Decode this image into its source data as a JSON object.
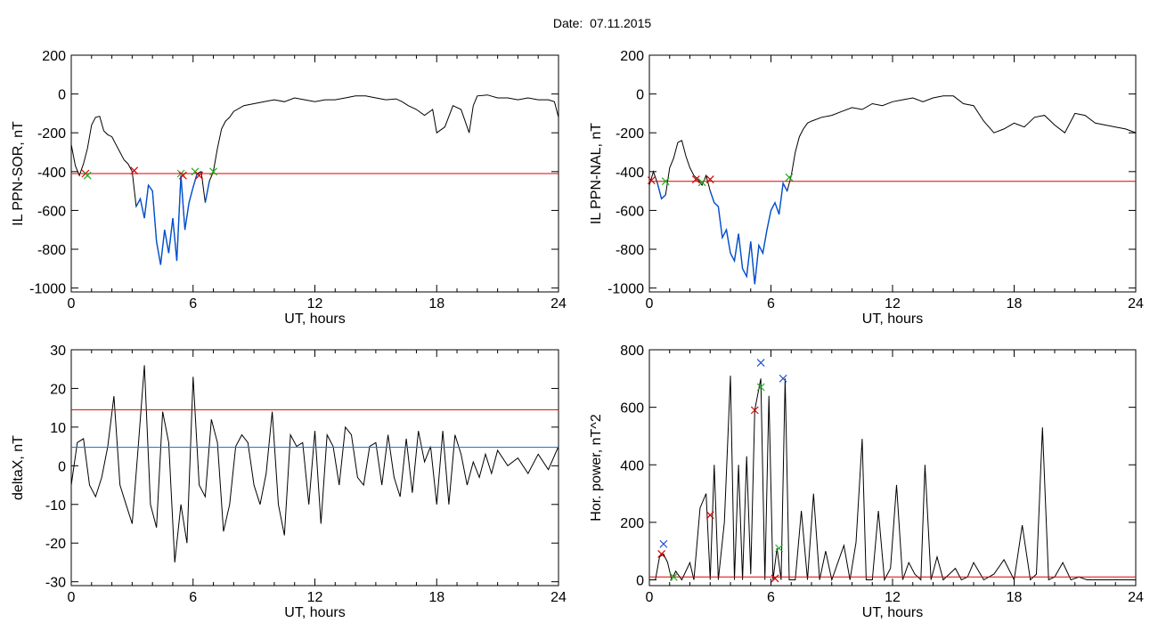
{
  "page": {
    "date_label": "Date:",
    "date_value": "07.11.2015"
  },
  "colors": {
    "axes": "#000000",
    "data_line": "#000000",
    "threshold_line": "#dd0000",
    "highlight_line": "#0050d0",
    "mean_line": "#1f77d4",
    "marker_red": "#cc0000",
    "marker_green": "#22aa22",
    "marker_blue": "#2255cc"
  },
  "chart_data": [
    {
      "id": "panel-1",
      "type": "line",
      "xlabel": "UT, hours",
      "ylabel": "IL PPN-SOR, nT",
      "xlim": [
        0,
        24
      ],
      "ylim": [
        -1020,
        200
      ],
      "xticks": [
        0,
        6,
        12,
        18,
        24
      ],
      "yticks": [
        -1000,
        -800,
        -600,
        -400,
        -200,
        0,
        200
      ],
      "threshold": -410,
      "series": [
        {
          "x": [
            0,
            0.2,
            0.4,
            0.6,
            0.8,
            1.0,
            1.2,
            1.4,
            1.6,
            1.8,
            2.0,
            2.2,
            2.4,
            2.6,
            2.8,
            3.0,
            3.2,
            3.4,
            3.6,
            3.8,
            4.0,
            4.2,
            4.4,
            4.6,
            4.8,
            5.0,
            5.2,
            5.4,
            5.6,
            5.8,
            6.0,
            6.2,
            6.4,
            6.6,
            6.8,
            7.0,
            7.2,
            7.4,
            7.6,
            7.8,
            8.0,
            8.5,
            9.0,
            9.5,
            10.0,
            10.5,
            11.0,
            11.5,
            12.0,
            12.5,
            13.0,
            13.5,
            14.0,
            14.5,
            15.0,
            15.5,
            16.0,
            16.3,
            16.6,
            17.0,
            17.4,
            17.8,
            18.0,
            18.4,
            18.8,
            19.2,
            19.6,
            19.8,
            20.0,
            20.5,
            21.0,
            21.5,
            22.0,
            22.5,
            23.0,
            23.5,
            23.8,
            24.0
          ],
          "y": [
            -260,
            -370,
            -420,
            -360,
            -280,
            -160,
            -120,
            -115,
            -190,
            -210,
            -220,
            -260,
            -300,
            -340,
            -360,
            -400,
            -580,
            -540,
            -640,
            -470,
            -500,
            -760,
            -880,
            -700,
            -820,
            -640,
            -860,
            -420,
            -700,
            -560,
            -480,
            -410,
            -400,
            -560,
            -450,
            -400,
            -280,
            -180,
            -140,
            -120,
            -90,
            -60,
            -50,
            -40,
            -30,
            -40,
            -20,
            -30,
            -40,
            -30,
            -30,
            -20,
            -10,
            -10,
            -20,
            -30,
            -25,
            -40,
            -60,
            -80,
            -110,
            -80,
            -200,
            -170,
            -60,
            -80,
            -200,
            -60,
            -10,
            -5,
            -20,
            -20,
            -30,
            -20,
            -30,
            -30,
            -40,
            -120
          ]
        }
      ],
      "markers": [
        {
          "x": 0.7,
          "y": -410,
          "color": "red"
        },
        {
          "x": 0.8,
          "y": -420,
          "color": "green"
        },
        {
          "x": 3.1,
          "y": -395,
          "color": "red"
        },
        {
          "x": 5.4,
          "y": -410,
          "color": "green"
        },
        {
          "x": 5.5,
          "y": -420,
          "color": "red"
        },
        {
          "x": 6.1,
          "y": -400,
          "color": "green"
        },
        {
          "x": 6.3,
          "y": -420,
          "color": "red"
        },
        {
          "x": 7.0,
          "y": -400,
          "color": "green"
        }
      ]
    },
    {
      "id": "panel-2",
      "type": "line",
      "xlabel": "UT, hours",
      "ylabel": "IL PPN-NAL, nT",
      "xlim": [
        0,
        24
      ],
      "ylim": [
        -1020,
        200
      ],
      "xticks": [
        0,
        6,
        12,
        18,
        24
      ],
      "yticks": [
        -1000,
        -800,
        -600,
        -400,
        -200,
        0,
        200
      ],
      "threshold": -450,
      "series": [
        {
          "x": [
            0,
            0.2,
            0.4,
            0.6,
            0.8,
            1.0,
            1.2,
            1.4,
            1.6,
            1.8,
            2.0,
            2.2,
            2.4,
            2.6,
            2.8,
            3.0,
            3.2,
            3.4,
            3.6,
            3.8,
            4.0,
            4.2,
            4.4,
            4.6,
            4.8,
            5.0,
            5.2,
            5.4,
            5.6,
            5.8,
            6.0,
            6.2,
            6.4,
            6.6,
            6.8,
            7.0,
            7.2,
            7.4,
            7.6,
            7.8,
            8.0,
            8.5,
            9.0,
            9.5,
            10.0,
            10.5,
            11.0,
            11.5,
            12.0,
            12.5,
            13.0,
            13.5,
            14.0,
            14.5,
            15.0,
            15.5,
            16.0,
            16.5,
            17.0,
            17.5,
            18.0,
            18.5,
            19.0,
            19.5,
            20.0,
            20.5,
            21.0,
            21.5,
            22.0,
            22.5,
            23.0,
            23.5,
            24.0
          ],
          "y": [
            -470,
            -400,
            -460,
            -540,
            -520,
            -380,
            -330,
            -250,
            -240,
            -320,
            -380,
            -420,
            -440,
            -470,
            -420,
            -500,
            -560,
            -580,
            -740,
            -700,
            -820,
            -860,
            -720,
            -900,
            -940,
            -760,
            -980,
            -780,
            -820,
            -700,
            -600,
            -560,
            -620,
            -460,
            -500,
            -420,
            -300,
            -220,
            -180,
            -150,
            -140,
            -120,
            -110,
            -90,
            -70,
            -80,
            -50,
            -60,
            -40,
            -30,
            -20,
            -40,
            -20,
            -10,
            -10,
            -50,
            -60,
            -140,
            -200,
            -180,
            -150,
            -170,
            -120,
            -110,
            -160,
            -200,
            -100,
            -110,
            -150,
            -160,
            -170,
            -180,
            -200
          ]
        }
      ],
      "markers": [
        {
          "x": 0.1,
          "y": -445,
          "color": "red"
        },
        {
          "x": 0.8,
          "y": -450,
          "color": "green"
        },
        {
          "x": 2.3,
          "y": -440,
          "color": "red"
        },
        {
          "x": 2.6,
          "y": -455,
          "color": "green"
        },
        {
          "x": 3.0,
          "y": -440,
          "color": "red"
        },
        {
          "x": 6.9,
          "y": -430,
          "color": "green"
        }
      ]
    },
    {
      "id": "panel-3",
      "type": "line",
      "xlabel": "UT, hours",
      "ylabel": "deltaX, nT",
      "xlim": [
        0,
        24
      ],
      "ylim": [
        -31,
        30
      ],
      "xticks": [
        0,
        6,
        12,
        18,
        24
      ],
      "yticks": [
        -30,
        -20,
        -10,
        0,
        10,
        20,
        30
      ],
      "threshold": 14.5,
      "mean_line": 4.8,
      "series": [
        {
          "x": [
            0,
            0.3,
            0.6,
            0.9,
            1.2,
            1.5,
            1.8,
            2.1,
            2.4,
            2.7,
            3.0,
            3.3,
            3.6,
            3.9,
            4.2,
            4.5,
            4.8,
            5.1,
            5.4,
            5.7,
            6.0,
            6.3,
            6.6,
            6.9,
            7.2,
            7.5,
            7.8,
            8.1,
            8.4,
            8.7,
            9.0,
            9.3,
            9.6,
            9.9,
            10.2,
            10.5,
            10.8,
            11.1,
            11.4,
            11.7,
            12.0,
            12.3,
            12.6,
            12.9,
            13.2,
            13.5,
            13.8,
            14.1,
            14.4,
            14.7,
            15.0,
            15.3,
            15.6,
            15.9,
            16.2,
            16.5,
            16.8,
            17.1,
            17.4,
            17.7,
            18.0,
            18.3,
            18.6,
            18.9,
            19.2,
            19.5,
            19.8,
            20.1,
            20.4,
            20.7,
            21.0,
            21.5,
            22.0,
            22.5,
            23.0,
            23.5,
            24.0
          ],
          "y": [
            -5,
            6,
            7,
            -5,
            -8,
            -3,
            5,
            18,
            -5,
            -10,
            -15,
            5,
            26,
            -10,
            -16,
            14,
            6,
            -25,
            -10,
            -20,
            23,
            -5,
            -8,
            12,
            6,
            -17,
            -10,
            5,
            8,
            6,
            -5,
            -10,
            -2,
            14,
            -10,
            -18,
            8,
            5,
            6,
            -10,
            9,
            -15,
            8,
            5,
            -5,
            10,
            8,
            -3,
            -5,
            5,
            6,
            -5,
            8,
            -3,
            -8,
            7,
            -7,
            9,
            1,
            5,
            -10,
            9,
            -10,
            8,
            3,
            -5,
            1,
            -3,
            3,
            -2,
            4,
            0,
            2,
            -2,
            3,
            -1,
            5
          ]
        }
      ],
      "markers": []
    },
    {
      "id": "panel-4",
      "type": "line",
      "xlabel": "UT, hours",
      "ylabel": "Hor. power, nT^2",
      "xlim": [
        0,
        24
      ],
      "ylim": [
        -20,
        800
      ],
      "xticks": [
        0,
        6,
        12,
        18,
        24
      ],
      "yticks": [
        0,
        200,
        400,
        600,
        800
      ],
      "threshold": 10,
      "series": [
        {
          "x": [
            0,
            0.3,
            0.5,
            0.7,
            0.9,
            1.1,
            1.3,
            1.6,
            2.0,
            2.2,
            2.5,
            2.8,
            3.0,
            3.2,
            3.4,
            3.7,
            4.0,
            4.2,
            4.4,
            4.6,
            4.8,
            5.0,
            5.2,
            5.5,
            5.7,
            5.9,
            6.1,
            6.3,
            6.5,
            6.7,
            6.9,
            7.2,
            7.5,
            7.8,
            8.1,
            8.4,
            8.7,
            9.0,
            9.3,
            9.6,
            9.9,
            10.2,
            10.5,
            10.7,
            11.0,
            11.3,
            11.6,
            11.9,
            12.2,
            12.5,
            12.8,
            13.1,
            13.4,
            13.6,
            13.9,
            14.2,
            14.5,
            14.8,
            15.1,
            15.4,
            15.7,
            16.0,
            16.5,
            17.0,
            17.5,
            18.0,
            18.4,
            18.8,
            19.1,
            19.4,
            19.7,
            20.0,
            20.4,
            20.8,
            21.2,
            21.6,
            22.0,
            22.5,
            23.0,
            23.5,
            24.0
          ],
          "y": [
            0,
            0,
            80,
            90,
            60,
            0,
            30,
            0,
            60,
            0,
            250,
            300,
            0,
            400,
            0,
            200,
            710,
            0,
            400,
            0,
            430,
            20,
            590,
            700,
            0,
            640,
            0,
            110,
            0,
            700,
            0,
            0,
            240,
            0,
            300,
            0,
            100,
            0,
            60,
            120,
            0,
            130,
            490,
            0,
            0,
            240,
            0,
            40,
            330,
            0,
            60,
            20,
            0,
            400,
            0,
            80,
            0,
            20,
            40,
            0,
            10,
            60,
            0,
            20,
            70,
            0,
            190,
            0,
            20,
            530,
            0,
            10,
            60,
            0,
            10,
            0,
            0,
            0,
            0,
            0,
            0
          ]
        }
      ],
      "markers": [
        {
          "x": 0.6,
          "y": 90,
          "color": "red"
        },
        {
          "x": 0.7,
          "y": 125,
          "color": "blue"
        },
        {
          "x": 1.2,
          "y": 10,
          "color": "green"
        },
        {
          "x": 3.0,
          "y": 225,
          "color": "red"
        },
        {
          "x": 5.2,
          "y": 590,
          "color": "red"
        },
        {
          "x": 5.5,
          "y": 670,
          "color": "green"
        },
        {
          "x": 5.5,
          "y": 755,
          "color": "blue"
        },
        {
          "x": 6.2,
          "y": 5,
          "color": "red"
        },
        {
          "x": 6.4,
          "y": 110,
          "color": "green"
        },
        {
          "x": 6.6,
          "y": 700,
          "color": "blue"
        }
      ]
    }
  ]
}
